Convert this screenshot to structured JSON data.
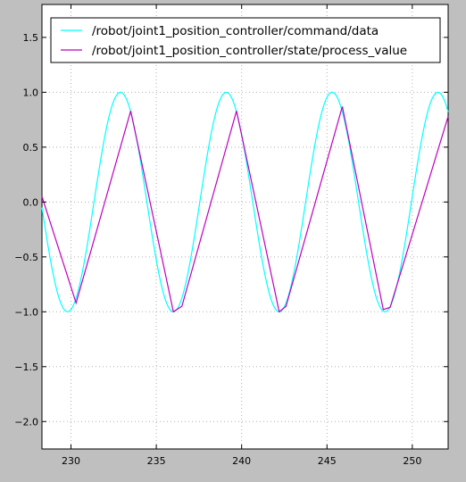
{
  "chart_data": {
    "type": "line",
    "title": "",
    "xlabel": "",
    "ylabel": "",
    "xlim": [
      228.3,
      252.1
    ],
    "ylim": [
      -2.25,
      1.8
    ],
    "x_ticks": [
      230,
      235,
      240,
      245,
      250
    ],
    "x_tick_labels": [
      "230",
      "235",
      "240",
      "245",
      "250"
    ],
    "y_ticks": [
      1.5,
      1.0,
      0.5,
      0.0,
      -0.5,
      -1.0,
      -1.5,
      -2.0
    ],
    "y_tick_labels": [
      "1.5",
      "1.0",
      "0.5",
      "0.0",
      "−0.5",
      "−1.0",
      "−1.5",
      "−2.0"
    ],
    "grid": true,
    "legend_position": "top",
    "series": [
      {
        "name": "/robot/joint1_position_controller/command/data",
        "color": "#00ffff",
        "shape": "sine",
        "amplitude": 1.0,
        "period": 6.2,
        "peak_x": 232.9,
        "x_range": [
          228.3,
          252.1
        ]
      },
      {
        "name": "/robot/joint1_position_controller/state/process_value",
        "color": "#bf00bf",
        "shape": "polyline",
        "points": [
          [
            228.3,
            0.05
          ],
          [
            230.3,
            -0.92
          ],
          [
            233.5,
            0.83
          ],
          [
            236.0,
            -1.0
          ],
          [
            236.5,
            -0.95
          ],
          [
            239.7,
            0.83
          ],
          [
            242.2,
            -1.0
          ],
          [
            242.6,
            -0.95
          ],
          [
            245.9,
            0.87
          ],
          [
            248.3,
            -0.98
          ],
          [
            248.7,
            -0.96
          ],
          [
            252.1,
            0.78
          ]
        ]
      }
    ]
  }
}
